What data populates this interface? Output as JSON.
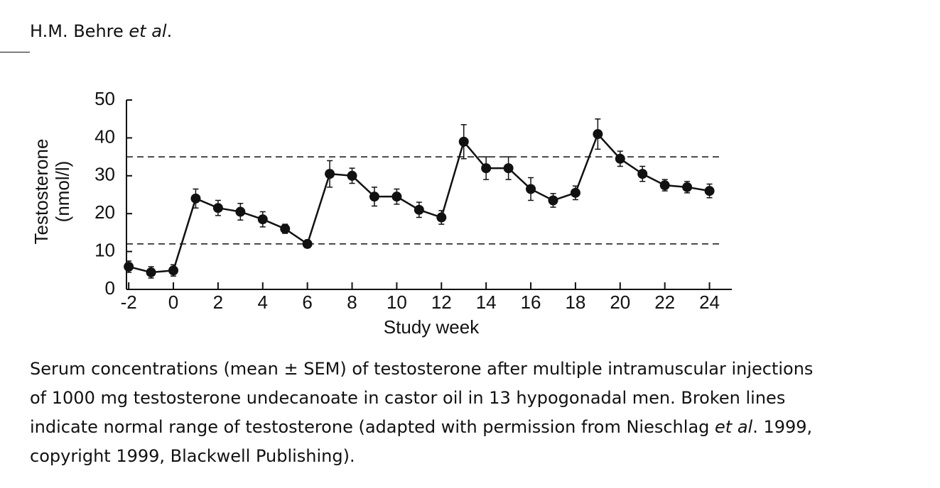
{
  "header": [
    "H.M. Behre ",
    "et al",
    "."
  ],
  "caption": [
    "Serum concentrations (mean ± SEM) of testosterone after multiple intramuscular injections of 1000 mg testosterone undecanoate in castor oil in 13 hypogonadal men. Broken lines indicate normal range of testosterone (adapted with permission from Nieschlag ",
    "et al",
    ". 1999, copyright 1999, Blackwell Publishing)."
  ],
  "chart_data": {
    "type": "line",
    "y_label": [
      "Testosterone",
      "(nmol/l)"
    ],
    "x_label": "Study week",
    "x": [
      -2,
      -1,
      0,
      1,
      2,
      3,
      4,
      5,
      6,
      7,
      8,
      9,
      10,
      11,
      12,
      13,
      14,
      15,
      16,
      17,
      18,
      19,
      20,
      21,
      22,
      23,
      24
    ],
    "values": [
      6,
      4.5,
      5,
      24,
      21.5,
      20.5,
      18.5,
      16,
      12,
      30.5,
      30,
      24.5,
      24.5,
      21,
      19,
      39,
      32,
      32,
      26.5,
      23.5,
      25.5,
      41,
      34.5,
      30.5,
      27.5,
      27,
      26
    ],
    "errors": [
      1.5,
      1.5,
      1.5,
      2.5,
      2,
      2.2,
      2,
      1.2,
      1,
      3.5,
      2,
      2.5,
      2,
      2,
      1.8,
      4.5,
      3,
      3,
      3,
      1.8,
      1.8,
      4,
      2,
      2,
      1.5,
      1.5,
      1.8
    ],
    "reference_lines": [
      12,
      35
    ],
    "color": "#111111",
    "xlim": [
      -2.1,
      25
    ],
    "ylim": [
      0,
      50
    ],
    "xticks": [
      -2,
      0,
      2,
      4,
      6,
      8,
      10,
      12,
      14,
      16,
      18,
      20,
      22,
      24
    ],
    "yticks": [
      0,
      10,
      20,
      30,
      40,
      50
    ]
  }
}
